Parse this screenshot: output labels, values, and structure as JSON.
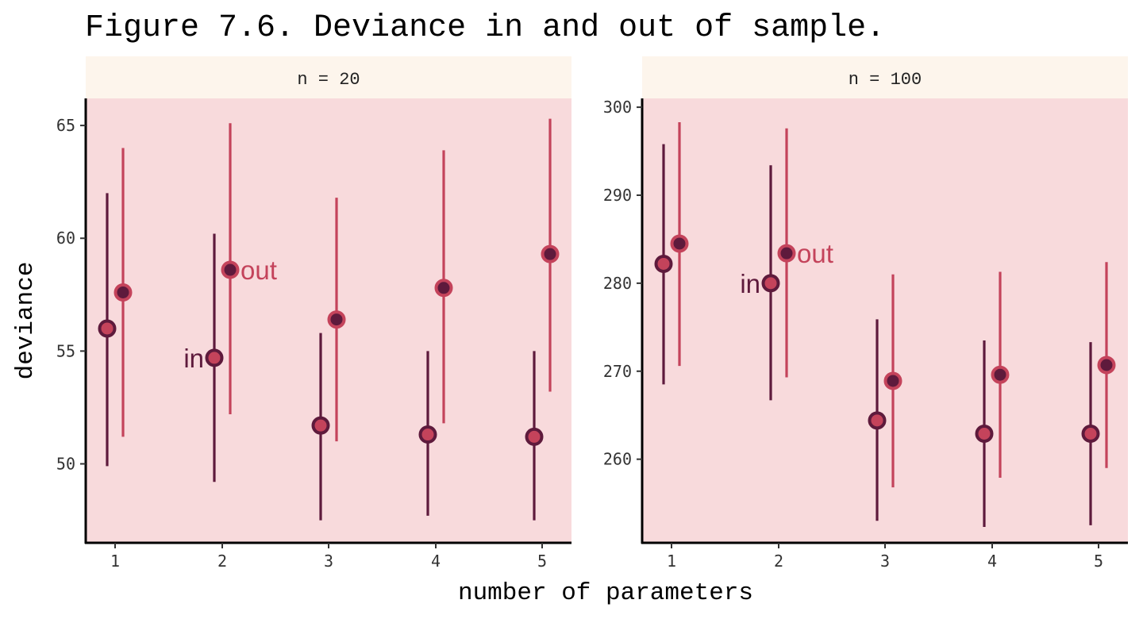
{
  "colors": {
    "panel_bg": "#f8dadc",
    "strip_bg": "#fdf5ec",
    "in_color": "#5e1a3c",
    "out_color": "#c4435b",
    "axis_color": "#000000"
  },
  "chart_data": {
    "type": "scatter",
    "title": "Figure 7.6. Deviance in and out of sample.",
    "xlabel": "number of parameters",
    "ylabel": "deviance",
    "x_ticks": [
      1,
      2,
      3,
      4,
      5
    ],
    "grid": false,
    "legend": "none",
    "panels": [
      {
        "strip_label": "n = 20",
        "ylim": [
          46.5,
          66.2
        ],
        "y_ticks": [
          50,
          55,
          60,
          65
        ],
        "series": [
          {
            "name": "in",
            "points": [
              {
                "x": 1,
                "mean": 56.0,
                "low": 49.9,
                "high": 62.0
              },
              {
                "x": 2,
                "mean": 54.7,
                "low": 49.2,
                "high": 60.2
              },
              {
                "x": 3,
                "mean": 51.7,
                "low": 47.5,
                "high": 55.8
              },
              {
                "x": 4,
                "mean": 51.3,
                "low": 47.7,
                "high": 55.0
              },
              {
                "x": 5,
                "mean": 51.2,
                "low": 47.5,
                "high": 55.0
              }
            ]
          },
          {
            "name": "out",
            "points": [
              {
                "x": 1,
                "mean": 57.6,
                "low": 51.2,
                "high": 64.0
              },
              {
                "x": 2,
                "mean": 58.6,
                "low": 52.2,
                "high": 65.1
              },
              {
                "x": 3,
                "mean": 56.4,
                "low": 51.0,
                "high": 61.8
              },
              {
                "x": 4,
                "mean": 57.8,
                "low": 51.8,
                "high": 63.9
              },
              {
                "x": 5,
                "mean": 59.3,
                "low": 53.2,
                "high": 65.3
              }
            ]
          }
        ],
        "annotations": [
          {
            "text": "in",
            "series": "in",
            "x": 2
          },
          {
            "text": "out",
            "series": "out",
            "x": 2
          }
        ]
      },
      {
        "strip_label": "n = 100",
        "ylim": [
          250.5,
          301.0
        ],
        "y_ticks": [
          260,
          270,
          280,
          290,
          300
        ],
        "series": [
          {
            "name": "in",
            "points": [
              {
                "x": 1,
                "mean": 282.2,
                "low": 268.5,
                "high": 295.8
              },
              {
                "x": 2,
                "mean": 280.0,
                "low": 266.7,
                "high": 293.4
              },
              {
                "x": 3,
                "mean": 264.4,
                "low": 253.0,
                "high": 275.9
              },
              {
                "x": 4,
                "mean": 262.9,
                "low": 252.3,
                "high": 273.5
              },
              {
                "x": 5,
                "mean": 262.9,
                "low": 252.5,
                "high": 273.3
              }
            ]
          },
          {
            "name": "out",
            "points": [
              {
                "x": 1,
                "mean": 284.5,
                "low": 270.6,
                "high": 298.3
              },
              {
                "x": 2,
                "mean": 283.4,
                "low": 269.3,
                "high": 297.6
              },
              {
                "x": 3,
                "mean": 268.9,
                "low": 256.8,
                "high": 281.0
              },
              {
                "x": 4,
                "mean": 269.6,
                "low": 257.9,
                "high": 281.3
              },
              {
                "x": 5,
                "mean": 270.7,
                "low": 259.0,
                "high": 282.4
              }
            ]
          }
        ],
        "annotations": [
          {
            "text": "in",
            "series": "in",
            "x": 2
          },
          {
            "text": "out",
            "series": "out",
            "x": 2
          }
        ]
      }
    ]
  }
}
